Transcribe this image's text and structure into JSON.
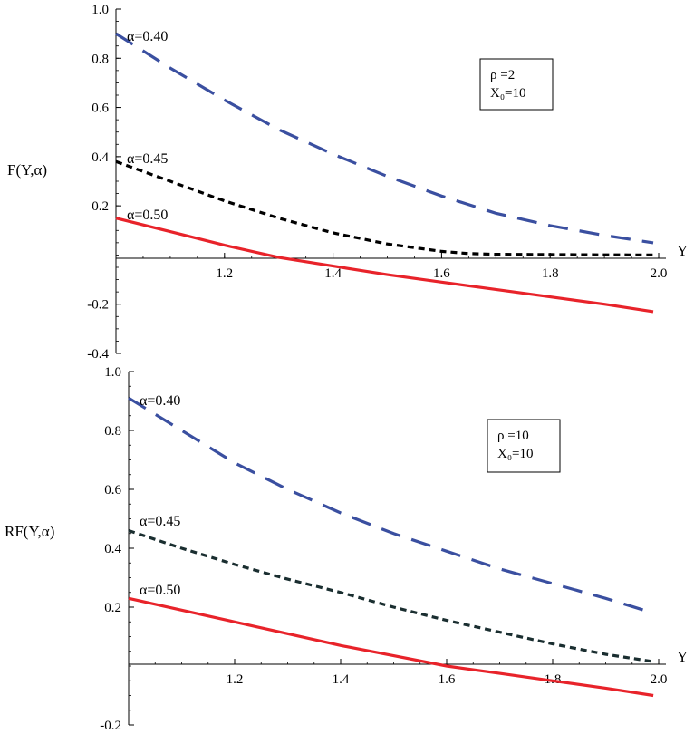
{
  "chart_data": [
    {
      "type": "line",
      "xlabel": "Y",
      "ylabel": "F(Y,α)",
      "xlim": [
        1.0,
        2.0
      ],
      "ylim": [
        -0.4,
        1.0
      ],
      "x_ticks": [
        "1.2",
        "1.4",
        "1.6",
        "1.8",
        "2.0"
      ],
      "y_ticks": [
        "-0.4",
        "-0.2",
        "0.2",
        "0.4",
        "0.6",
        "0.8",
        "1.0"
      ],
      "legend_box": [
        "ρ =2",
        "X₀=10"
      ],
      "legend_position": "top-right",
      "grid": false,
      "series": [
        {
          "name": "α=0.40",
          "color": "#3a4fa0",
          "style": "long-dash",
          "x": [
            1.0,
            1.1,
            1.2,
            1.3,
            1.4,
            1.5,
            1.6,
            1.7,
            1.8,
            1.9,
            1.99
          ],
          "y": [
            0.9,
            0.76,
            0.63,
            0.51,
            0.41,
            0.32,
            0.24,
            0.17,
            0.12,
            0.08,
            0.05
          ]
        },
        {
          "name": "α=0.45",
          "color": "#000000",
          "style": "short-dash",
          "x": [
            1.0,
            1.1,
            1.2,
            1.3,
            1.4,
            1.5,
            1.6,
            1.65,
            1.7,
            1.8,
            1.9,
            1.99
          ],
          "y": [
            0.38,
            0.3,
            0.22,
            0.15,
            0.09,
            0.045,
            0.015,
            0.006,
            0.003,
            0.002,
            0.001,
            0.0
          ]
        },
        {
          "name": "α=0.50",
          "color": "#e8232a",
          "style": "solid",
          "x": [
            1.0,
            1.1,
            1.2,
            1.3,
            1.4,
            1.5,
            1.6,
            1.7,
            1.8,
            1.9,
            1.99
          ],
          "y": [
            0.15,
            0.095,
            0.04,
            -0.01,
            -0.045,
            -0.08,
            -0.11,
            -0.14,
            -0.17,
            -0.2,
            -0.23
          ]
        }
      ]
    },
    {
      "type": "line",
      "xlabel": "Y",
      "ylabel": "RF(Y,α)",
      "xlim": [
        1.0,
        2.0
      ],
      "ylim": [
        -0.2,
        1.0
      ],
      "x_ticks": [
        "1.2",
        "1.4",
        "1.6",
        "1.8",
        "2.0"
      ],
      "y_ticks": [
        "-0.2",
        "0.2",
        "0.4",
        "0.6",
        "0.8",
        "1.0"
      ],
      "legend_box": [
        "ρ =10",
        "X₀=10"
      ],
      "legend_position": "top-right",
      "grid": false,
      "series": [
        {
          "name": "α=0.40",
          "color": "#3a4fa0",
          "style": "long-dash",
          "x": [
            1.0,
            1.1,
            1.2,
            1.3,
            1.4,
            1.5,
            1.6,
            1.7,
            1.8,
            1.9,
            1.99
          ],
          "y": [
            0.91,
            0.8,
            0.69,
            0.6,
            0.52,
            0.45,
            0.39,
            0.33,
            0.28,
            0.23,
            0.18
          ]
        },
        {
          "name": "α=0.45",
          "color": "#1a2e30",
          "style": "short-dash",
          "x": [
            1.0,
            1.1,
            1.2,
            1.3,
            1.4,
            1.5,
            1.6,
            1.7,
            1.8,
            1.9,
            1.99
          ],
          "y": [
            0.46,
            0.4,
            0.345,
            0.295,
            0.25,
            0.2,
            0.155,
            0.115,
            0.075,
            0.04,
            0.015
          ]
        },
        {
          "name": "α=0.50",
          "color": "#e8232a",
          "style": "solid",
          "x": [
            1.0,
            1.1,
            1.2,
            1.3,
            1.4,
            1.5,
            1.6,
            1.7,
            1.8,
            1.9,
            1.99
          ],
          "y": [
            0.23,
            0.19,
            0.15,
            0.11,
            0.07,
            0.035,
            0.0,
            -0.025,
            -0.05,
            -0.075,
            -0.1
          ]
        }
      ]
    }
  ]
}
